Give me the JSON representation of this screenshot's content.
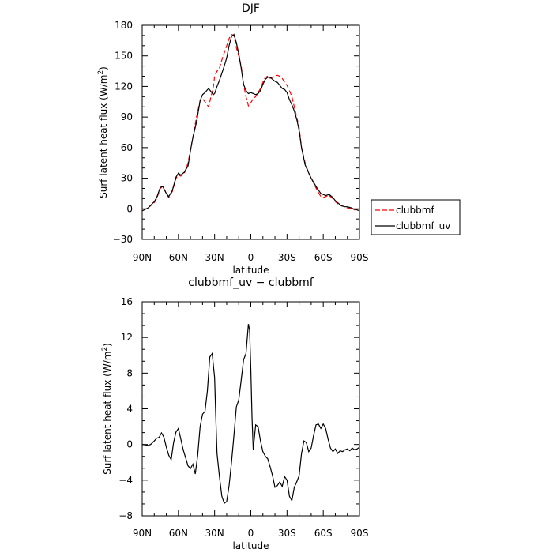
{
  "chart_data": [
    {
      "type": "line",
      "title": "DJF",
      "xlabel": "latitude",
      "ylabel": "Surf latent heat flux (W/m",
      "ylabel_sup": "2",
      "ylabel_close": ")",
      "x_ticks": [
        {
          "x": -90,
          "label": "90N"
        },
        {
          "x": -60,
          "label": "60N"
        },
        {
          "x": -30,
          "label": "30N"
        },
        {
          "x": 0,
          "label": "0"
        },
        {
          "x": 30,
          "label": "30S"
        },
        {
          "x": 60,
          "label": "60S"
        },
        {
          "x": 90,
          "label": "90S"
        }
      ],
      "xlim": [
        -90,
        90
      ],
      "ylim": [
        -30,
        180
      ],
      "y_ticks": [
        -30,
        0,
        30,
        60,
        90,
        120,
        150,
        180
      ],
      "legend_position": "right",
      "series": [
        {
          "name": "clubbmf",
          "color": "#ff0000",
          "dash": "dashed",
          "x": [
            -90,
            -85,
            -80,
            -78,
            -75,
            -73,
            -70,
            -68,
            -65,
            -62,
            -60,
            -58,
            -55,
            -52,
            -50,
            -48,
            -45,
            -42,
            -40,
            -38,
            -35,
            -33,
            -31,
            -30,
            -28,
            -26,
            -24,
            -22,
            -20,
            -18,
            -16,
            -14,
            -12,
            -10,
            -8,
            -6,
            -4,
            -2,
            0,
            2,
            4,
            6,
            8,
            10,
            12,
            14,
            16,
            18,
            20,
            22,
            24,
            26,
            28,
            30,
            32,
            34,
            36,
            38,
            40,
            42,
            45,
            48,
            50,
            55,
            58,
            60,
            62,
            65,
            68,
            70,
            72,
            75,
            78,
            80,
            83,
            85,
            88,
            90
          ],
          "y": [
            -2,
            1,
            6,
            10,
            20,
            22,
            15,
            11,
            17,
            30,
            33,
            32,
            35,
            45,
            58,
            70,
            90,
            106,
            108,
            105,
            100,
            110,
            120,
            130,
            135,
            138,
            146,
            153,
            160,
            167,
            171,
            170,
            158,
            150,
            140,
            122,
            110,
            101,
            104,
            108,
            110,
            114,
            118,
            124,
            129,
            130,
            128,
            129,
            130,
            131,
            130,
            128,
            124,
            121,
            116,
            110,
            100,
            90,
            80,
            60,
            45,
            35,
            30,
            18,
            12,
            11,
            12,
            13,
            10,
            7,
            5,
            3,
            2,
            1,
            0,
            -1,
            -1,
            -2
          ]
        },
        {
          "name": "clubbmf_uv",
          "color": "#000000",
          "dash": "solid",
          "x": [
            -90,
            -85,
            -80,
            -78,
            -75,
            -73,
            -70,
            -68,
            -65,
            -62,
            -60,
            -58,
            -55,
            -52,
            -50,
            -48,
            -45,
            -42,
            -40,
            -38,
            -35,
            -33,
            -31,
            -30,
            -28,
            -26,
            -24,
            -22,
            -20,
            -18,
            -16,
            -14,
            -12,
            -10,
            -8,
            -6,
            -4,
            -2,
            0,
            2,
            4,
            6,
            8,
            10,
            12,
            14,
            16,
            18,
            20,
            22,
            24,
            26,
            28,
            30,
            32,
            34,
            36,
            38,
            40,
            42,
            45,
            48,
            50,
            55,
            58,
            60,
            62,
            65,
            68,
            70,
            72,
            75,
            78,
            80,
            83,
            85,
            88,
            90
          ],
          "y": [
            -2,
            1,
            7,
            11,
            21,
            22,
            15,
            12,
            18,
            31,
            35,
            33,
            36,
            42,
            57,
            70,
            85,
            106,
            112,
            114,
            118,
            115,
            112,
            113,
            120,
            126,
            133,
            140,
            148,
            160,
            169,
            171,
            163,
            152,
            138,
            122,
            116,
            113,
            114,
            113,
            112,
            113,
            116,
            122,
            127,
            129,
            129,
            127,
            125,
            124,
            121,
            118,
            117,
            114,
            107,
            102,
            96,
            88,
            77,
            60,
            43,
            35,
            30,
            20,
            15,
            14,
            13,
            14,
            11,
            8,
            6,
            3,
            2,
            2,
            1,
            0,
            -1,
            -2
          ]
        }
      ]
    },
    {
      "type": "line",
      "title": "clubbmf_uv − clubbmf",
      "xlabel": "latitude",
      "ylabel": "Surf latent heat flux (W/m",
      "ylabel_sup": "2",
      "ylabel_close": ")",
      "x_ticks": [
        {
          "x": -90,
          "label": "90N"
        },
        {
          "x": -60,
          "label": "60N"
        },
        {
          "x": -30,
          "label": "30N"
        },
        {
          "x": 0,
          "label": "0"
        },
        {
          "x": 30,
          "label": "30S"
        },
        {
          "x": 60,
          "label": "60S"
        },
        {
          "x": 90,
          "label": "90S"
        }
      ],
      "xlim": [
        -90,
        90
      ],
      "ylim": [
        -8,
        16
      ],
      "y_ticks": [
        -8,
        -4,
        0,
        4,
        8,
        12,
        16
      ],
      "series": [
        {
          "color": "#000000",
          "dash": "solid",
          "x": [
            -90,
            -85,
            -83,
            -80,
            -78,
            -76,
            -74,
            -72,
            -70,
            -68,
            -66,
            -64,
            -62,
            -60,
            -58,
            -56,
            -54,
            -52,
            -50,
            -48,
            -46,
            -44,
            -42,
            -40,
            -38,
            -36,
            -34,
            -32,
            -30,
            -29,
            -28,
            -26,
            -24,
            -22,
            -20,
            -18,
            -16,
            -14,
            -12,
            -10,
            -8,
            -6,
            -4,
            -2,
            -1,
            0,
            1,
            2,
            4,
            6,
            8,
            10,
            12,
            14,
            16,
            18,
            20,
            22,
            24,
            26,
            28,
            30,
            32,
            34,
            36,
            38,
            40,
            42,
            44,
            46,
            48,
            50,
            52,
            54,
            56,
            58,
            60,
            62,
            64,
            66,
            68,
            70,
            72,
            74,
            76,
            78,
            80,
            82,
            84,
            86,
            88,
            90
          ],
          "y": [
            0,
            -0.1,
            0,
            0.4,
            0.7,
            0.8,
            1.3,
            0.8,
            -0.3,
            -1.2,
            -1.7,
            0.2,
            1.4,
            1.8,
            0.6,
            -0.6,
            -1.5,
            -2.4,
            -2.7,
            -2.2,
            -3.3,
            -1.2,
            2.0,
            3.4,
            3.7,
            6.0,
            9.8,
            10.2,
            7.5,
            3.0,
            -1.0,
            -3.6,
            -5.8,
            -6.6,
            -6.4,
            -4.6,
            -2.0,
            1.0,
            4.2,
            5.0,
            7.2,
            9.5,
            10.2,
            13.5,
            12.8,
            8.5,
            3.0,
            -0.6,
            2.2,
            2.0,
            0.4,
            -0.8,
            -1.3,
            -1.6,
            -2.5,
            -3.5,
            -4.8,
            -4.6,
            -4.2,
            -4.7,
            -3.6,
            -4.0,
            -5.8,
            -6.3,
            -4.8,
            -4.2,
            -3.5,
            -1.0,
            0.4,
            0.2,
            -0.8,
            -0.4,
            1.0,
            2.2,
            2.3,
            1.8,
            2.3,
            1.8,
            0.6,
            -0.4,
            -0.8,
            -0.5,
            -1.0,
            -0.7,
            -0.8,
            -0.6,
            -0.5,
            -0.7,
            -0.4,
            -0.6,
            -0.5,
            -0.3
          ]
        }
      ]
    }
  ]
}
